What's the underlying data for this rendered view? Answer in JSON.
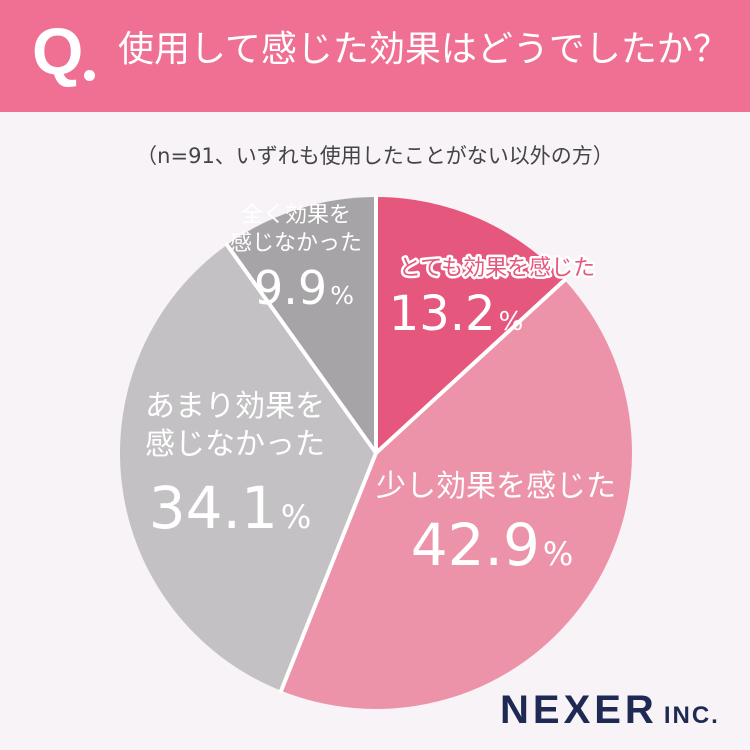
{
  "header": {
    "q_label": "Q",
    "question": "使用して感じた効果はどうでしたか？"
  },
  "sample_note": "（n=91、いずれも使用したことがない以外の方）",
  "chart_data": {
    "type": "pie",
    "title": "使用して感じた効果はどうでしたか？",
    "unit": "%",
    "slices": [
      {
        "label_lines": [
          "とても効果を感じた"
        ],
        "value": 13.2,
        "value_text": "13.2",
        "color": "#e5577d",
        "label_color": "#e5577d",
        "label_bg": "#ffffff",
        "value_color": "#ffffff"
      },
      {
        "label_lines": [
          "少し効果を感じた"
        ],
        "value": 42.9,
        "value_text": "42.9",
        "color": "#ec93a9",
        "label_color": "#ffffff",
        "label_bg": "",
        "value_color": "#ffffff"
      },
      {
        "label_lines": [
          "あまり効果を",
          "感じなかった"
        ],
        "value": 34.1,
        "value_text": "34.1",
        "color": "#c3c1c3",
        "label_color": "#ffffff",
        "label_bg": "",
        "value_color": "#ffffff"
      },
      {
        "label_lines": [
          "全く効果を",
          "感じなかった"
        ],
        "value": 9.9,
        "value_text": "9.9",
        "color": "#a6a4a6",
        "label_color": "#ffffff",
        "label_bg": "",
        "value_color": "#ffffff"
      }
    ]
  },
  "brand": {
    "name": "NEXER",
    "suffix": "INC.",
    "color": "#1e2a54"
  }
}
